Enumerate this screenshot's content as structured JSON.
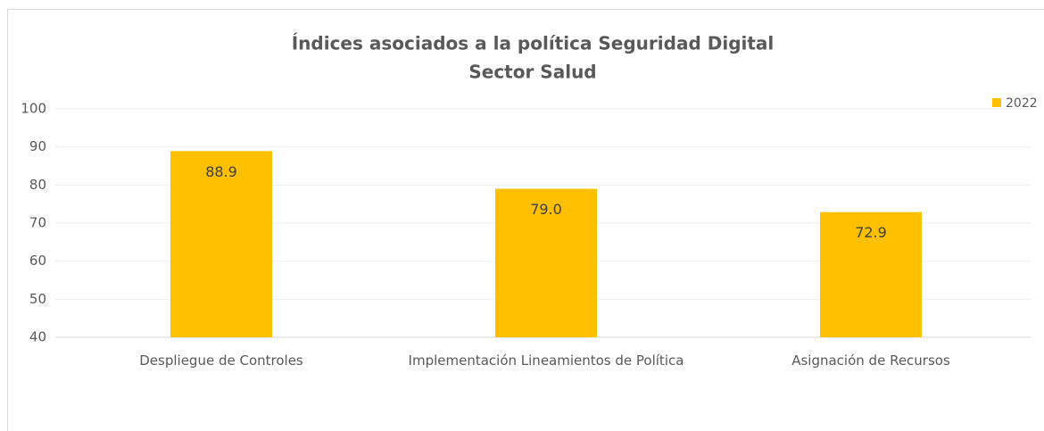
{
  "chart_data": {
    "type": "bar",
    "title": [
      "Índices asociados a la política Seguridad Digital",
      "Sector Salud"
    ],
    "categories": [
      "Despliegue de Controles",
      "Implementación Lineamientos de Política",
      "Asignación de Recursos"
    ],
    "series": [
      {
        "name": "2022",
        "color": "#ffc000",
        "values": [
          88.9,
          79.0,
          72.9
        ],
        "value_labels": [
          "88.9",
          "79.0",
          "72.9"
        ]
      }
    ],
    "ylim": [
      40,
      100
    ],
    "yticks": [
      40,
      50,
      60,
      70,
      80,
      90,
      100
    ],
    "grid": true,
    "legend": "top-right"
  }
}
